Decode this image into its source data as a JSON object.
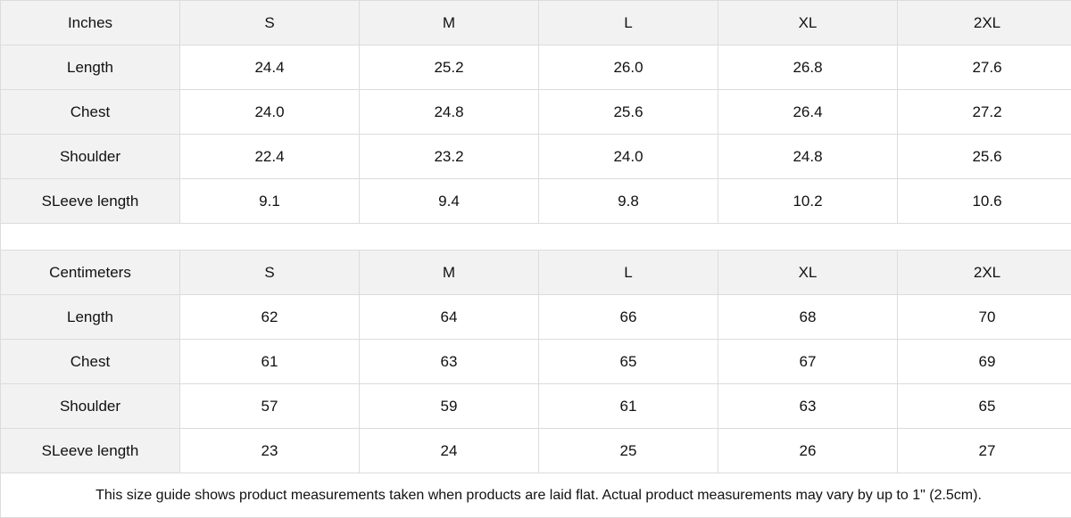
{
  "tables": [
    {
      "unit": "Inches",
      "sizes": [
        "S",
        "M",
        "L",
        "XL",
        "2XL"
      ],
      "rows": [
        {
          "label": "Length",
          "values": [
            "24.4",
            "25.2",
            "26.0",
            "26.8",
            "27.6"
          ]
        },
        {
          "label": "Chest",
          "values": [
            "24.0",
            "24.8",
            "25.6",
            "26.4",
            "27.2"
          ]
        },
        {
          "label": "Shoulder",
          "values": [
            "22.4",
            "23.2",
            "24.0",
            "24.8",
            "25.6"
          ]
        },
        {
          "label": "SLeeve length",
          "values": [
            "9.1",
            "9.4",
            "9.8",
            "10.2",
            "10.6"
          ]
        }
      ]
    },
    {
      "unit": "Centimeters",
      "sizes": [
        "S",
        "M",
        "L",
        "XL",
        "2XL"
      ],
      "rows": [
        {
          "label": "Length",
          "values": [
            "62",
            "64",
            "66",
            "68",
            "70"
          ]
        },
        {
          "label": "Chest",
          "values": [
            "61",
            "63",
            "65",
            "67",
            "69"
          ]
        },
        {
          "label": "Shoulder",
          "values": [
            "57",
            "59",
            "61",
            "63",
            "65"
          ]
        },
        {
          "label": "SLeeve length",
          "values": [
            "23",
            "24",
            "25",
            "26",
            "27"
          ]
        }
      ]
    }
  ],
  "note": "This size guide shows product measurements taken when products are laid flat.  Actual product measurements may vary by up to 1\" (2.5cm).",
  "colors": {
    "header_bg": "#f2f2f2",
    "border": "#dcdcdc"
  }
}
